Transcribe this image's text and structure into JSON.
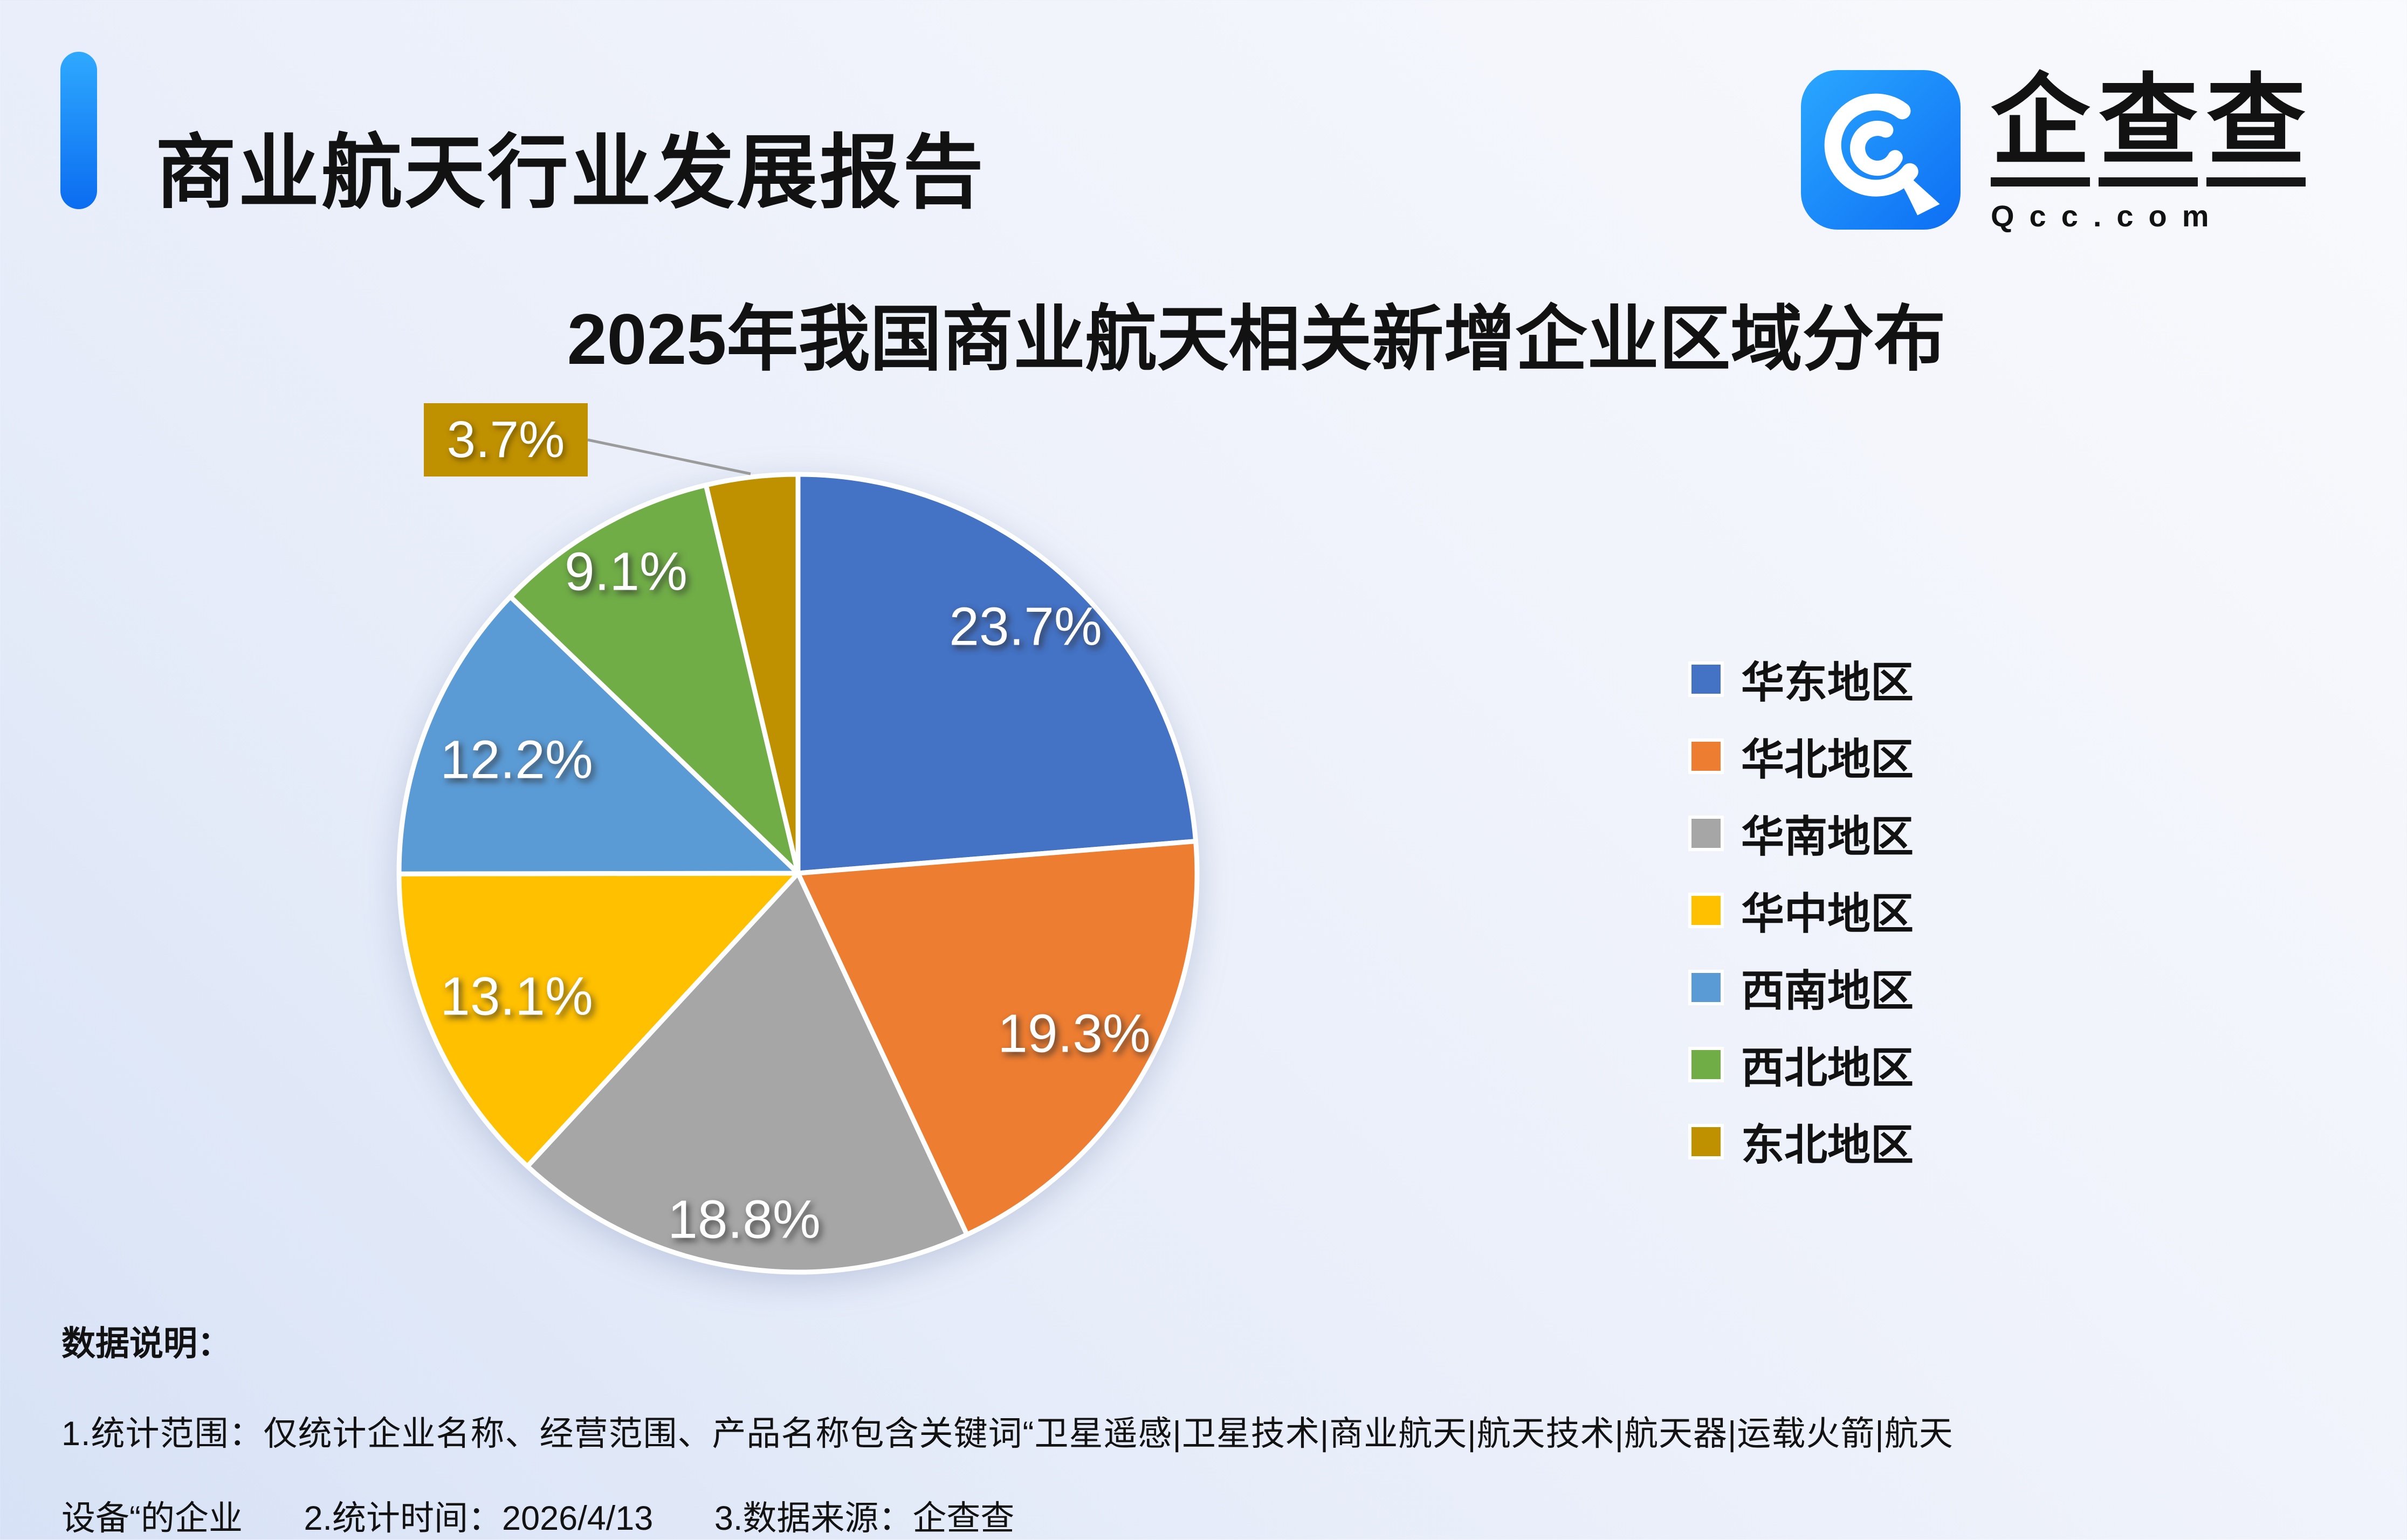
{
  "header": {
    "title": "商业航天行业发展报告",
    "accent_color": "#1677F0"
  },
  "logo": {
    "icon": "qcc-magnifier-icon",
    "icon_bg": "#1684FC",
    "brand_chars": [
      "企",
      "查",
      "查"
    ],
    "domain": "Qcc.com"
  },
  "chart_data": {
    "type": "pie",
    "title": "2025年我国商业航天相关新增企业区域分布",
    "categories": [
      "华东地区",
      "华北地区",
      "华南地区",
      "华中地区",
      "西南地区",
      "西北地区",
      "东北地区"
    ],
    "values": [
      23.7,
      19.3,
      18.8,
      13.1,
      12.2,
      9.1,
      3.7
    ],
    "colors": [
      "#4472C4",
      "#ED7D31",
      "#A6A6A6",
      "#FFC000",
      "#5B9BD5",
      "#70AD47",
      "#BF9000"
    ],
    "labels": [
      "23.7%",
      "19.3%",
      "18.8%",
      "13.1%",
      "12.2%",
      "9.1%",
      "3.7%"
    ],
    "label_style": "inside-white-with-shadow",
    "callout_slice": "东北地区",
    "callout_label": "3.7%",
    "legend_position": "right",
    "start_angle": "top-clockwise"
  },
  "notes": {
    "heading": "数据说明：",
    "line1": "1.统计范围：仅统计企业名称、经营范围、产品名称包含关键词“卫星遥感|卫星技术|商业航天|航天技术|航天器|运载火箭|航天",
    "line2_segments": [
      "设备“的企业",
      "2.统计时间：2026/4/13",
      "3.数据来源：企查查"
    ]
  }
}
